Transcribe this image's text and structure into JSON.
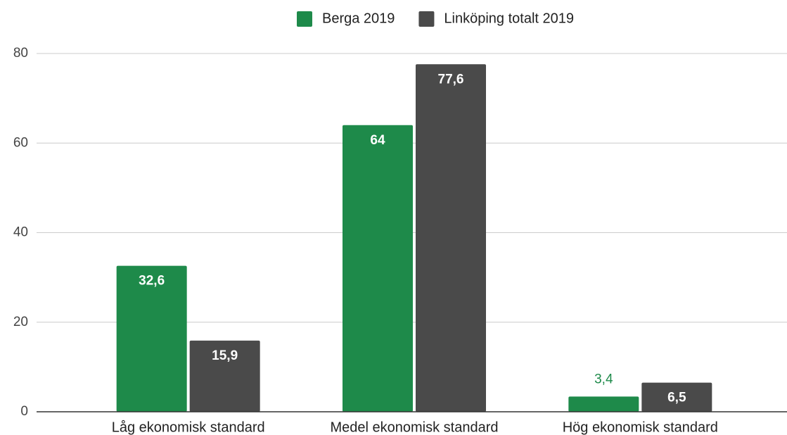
{
  "chart_data": {
    "type": "bar",
    "categories": [
      "Låg ekonomisk standard",
      "Medel ekonomisk standard",
      "Hög ekonomisk standard"
    ],
    "series": [
      {
        "name": "Berga 2019",
        "color": "#1e8a4a",
        "values": [
          32.6,
          64,
          3.4
        ],
        "value_labels": [
          "32,6",
          "64",
          "3,4"
        ]
      },
      {
        "name": "Linköping totalt 2019",
        "color": "#4a4a4a",
        "values": [
          15.9,
          77.6,
          6.5
        ],
        "value_labels": [
          "15,9",
          "77,6",
          "6,5"
        ]
      }
    ],
    "ylim": [
      0,
      80
    ],
    "yticks": [
      0,
      20,
      40,
      60,
      80
    ],
    "grid": true,
    "legend": "top"
  }
}
